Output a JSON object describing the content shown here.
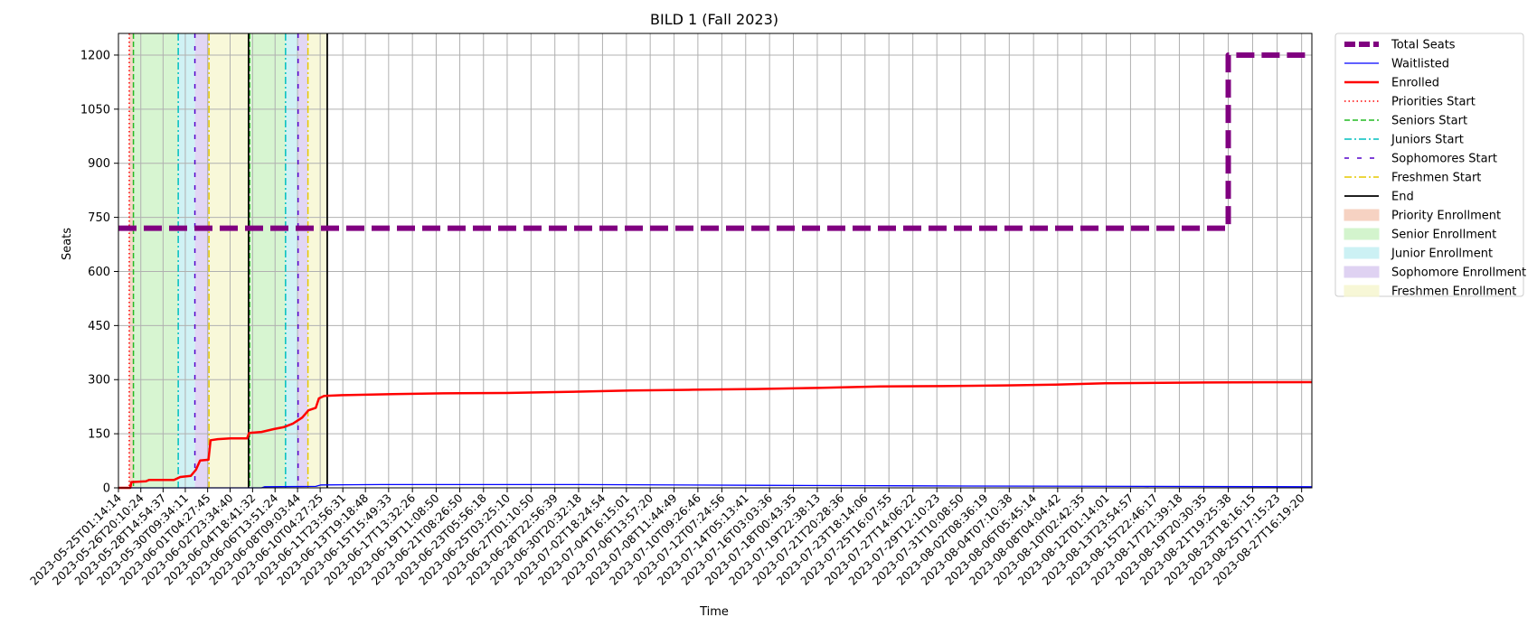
{
  "chart_data": {
    "type": "line",
    "title": "BILD 1 (Fall 2023)",
    "xlabel": "Time",
    "ylabel": "Seats",
    "ylim": [
      0,
      1260
    ],
    "yticks": [
      0,
      150,
      300,
      450,
      600,
      750,
      900,
      1050,
      1200
    ],
    "grid": true,
    "legend_position": "outside-right",
    "x_start": "2023-05-25T01:14:14",
    "x_end": "2023-08-28T12:00:00",
    "xticks": [
      "2023-05-25T01:14:14",
      "2023-05-26T20:10:24",
      "2023-05-28T14:54:37",
      "2023-05-30T09:34:11",
      "2023-06-01T04:27:45",
      "2023-06-02T23:34:40",
      "2023-06-04T18:41:32",
      "2023-06-06T13:51:24",
      "2023-06-08T09:03:44",
      "2023-06-10T04:27:25",
      "2023-06-11T23:56:31",
      "2023-06-13T19:18:48",
      "2023-06-15T15:49:33",
      "2023-06-17T13:32:26",
      "2023-06-19T11:08:50",
      "2023-06-21T08:26:50",
      "2023-06-23T05:56:18",
      "2023-06-25T03:25:10",
      "2023-06-27T01:10:50",
      "2023-06-28T22:56:39",
      "2023-06-30T20:32:18",
      "2023-07-02T18:24:54",
      "2023-07-04T16:15:01",
      "2023-07-06T13:57:20",
      "2023-07-08T11:44:49",
      "2023-07-10T09:26:46",
      "2023-07-12T07:24:56",
      "2023-07-14T05:13:41",
      "2023-07-16T03:03:36",
      "2023-07-18T00:43:35",
      "2023-07-19T22:38:13",
      "2023-07-21T20:28:36",
      "2023-07-23T18:14:06",
      "2023-07-25T16:07:55",
      "2023-07-27T14:06:22",
      "2023-07-29T12:10:23",
      "2023-07-31T10:08:50",
      "2023-08-02T08:36:19",
      "2023-08-04T07:10:38",
      "2023-08-06T05:45:14",
      "2023-08-08T04:04:42",
      "2023-08-10T02:42:35",
      "2023-08-12T01:14:01",
      "2023-08-13T23:54:57",
      "2023-08-15T22:46:17",
      "2023-08-17T21:39:18",
      "2023-08-19T20:30:35",
      "2023-08-21T19:25:38",
      "2023-08-23T18:16:15",
      "2023-08-25T17:15:23",
      "2023-08-27T16:19:20"
    ],
    "series": [
      {
        "name": "Total Seats",
        "color": "#800080",
        "style": "dashed-thick",
        "points": [
          [
            "2023-05-25T01:14:14",
            720
          ],
          [
            "2023-08-21T19:25:38",
            720
          ],
          [
            "2023-08-21T19:25:38",
            1200
          ],
          [
            "2023-08-28T12:00:00",
            1200
          ]
        ]
      },
      {
        "name": "Waitlisted",
        "color": "#0000ff",
        "style": "solid-thin",
        "points": [
          [
            "2023-05-25T01:14:14",
            0
          ],
          [
            "2023-06-05T12:00:00",
            0
          ],
          [
            "2023-06-05T18:00:00",
            3
          ],
          [
            "2023-06-09T20:00:00",
            4
          ],
          [
            "2023-06-10T06:00:00",
            8
          ],
          [
            "2023-06-15T00:00:00",
            9
          ],
          [
            "2023-07-01T00:00:00",
            9
          ],
          [
            "2023-07-15T00:00:00",
            7
          ],
          [
            "2023-08-01T00:00:00",
            5
          ],
          [
            "2023-08-15T00:00:00",
            4
          ],
          [
            "2023-08-28T12:00:00",
            3
          ]
        ]
      },
      {
        "name": "Enrolled",
        "color": "#ff0000",
        "style": "solid-thick",
        "points": [
          [
            "2023-05-25T01:14:14",
            0
          ],
          [
            "2023-05-26T00:00:00",
            0
          ],
          [
            "2023-05-26T02:00:00",
            16
          ],
          [
            "2023-05-27T06:00:00",
            18
          ],
          [
            "2023-05-27T12:00:00",
            22
          ],
          [
            "2023-05-29T12:00:00",
            22
          ],
          [
            "2023-05-30T00:00:00",
            30
          ],
          [
            "2023-05-30T20:00:00",
            33
          ],
          [
            "2023-05-31T06:00:00",
            50
          ],
          [
            "2023-05-31T14:00:00",
            76
          ],
          [
            "2023-06-01T06:00:00",
            78
          ],
          [
            "2023-06-01T10:00:00",
            132
          ],
          [
            "2023-06-02T00:00:00",
            135
          ],
          [
            "2023-06-03T00:00:00",
            137
          ],
          [
            "2023-06-04T08:00:00",
            137
          ],
          [
            "2023-06-04T12:00:00",
            152
          ],
          [
            "2023-06-05T12:00:00",
            155
          ],
          [
            "2023-06-06T12:00:00",
            163
          ],
          [
            "2023-06-07T06:00:00",
            168
          ],
          [
            "2023-06-08T00:00:00",
            178
          ],
          [
            "2023-06-08T18:00:00",
            195
          ],
          [
            "2023-06-09T06:00:00",
            215
          ],
          [
            "2023-06-09T20:00:00",
            222
          ],
          [
            "2023-06-10T02:00:00",
            248
          ],
          [
            "2023-06-10T12:00:00",
            255
          ],
          [
            "2023-06-12T00:00:00",
            257
          ],
          [
            "2023-06-16T00:00:00",
            260
          ],
          [
            "2023-06-20T00:00:00",
            262
          ],
          [
            "2023-06-25T00:00:00",
            263
          ],
          [
            "2023-06-30T00:00:00",
            266
          ],
          [
            "2023-07-05T00:00:00",
            270
          ],
          [
            "2023-07-10T00:00:00",
            272
          ],
          [
            "2023-07-15T00:00:00",
            274
          ],
          [
            "2023-07-20T00:00:00",
            277
          ],
          [
            "2023-07-25T00:00:00",
            281
          ],
          [
            "2023-07-30T00:00:00",
            282
          ],
          [
            "2023-08-04T00:00:00",
            284
          ],
          [
            "2023-08-08T00:00:00",
            286
          ],
          [
            "2023-08-12T00:00:00",
            290
          ],
          [
            "2023-08-20T00:00:00",
            292
          ],
          [
            "2023-08-28T12:00:00",
            293
          ]
        ]
      }
    ],
    "markers": [
      {
        "name": "Priorities Start",
        "color": "#ff0000",
        "style": "dotted",
        "times": [
          "2023-05-25T22:00:00",
          "2023-06-04T11:00:00"
        ]
      },
      {
        "name": "Seniors Start",
        "color": "#22bb22",
        "style": "dashed",
        "times": [
          "2023-05-26T06:00:00",
          "2023-06-04T13:00:00"
        ]
      },
      {
        "name": "Juniors Start",
        "color": "#00bfbf",
        "style": "dashdot",
        "times": [
          "2023-05-29T20:00:00",
          "2023-06-07T10:00:00"
        ]
      },
      {
        "name": "Sophomores Start",
        "color": "#5500cc",
        "style": "loosedash",
        "times": [
          "2023-05-31T04:00:00",
          "2023-06-08T10:00:00"
        ]
      },
      {
        "name": "Freshmen Start",
        "color": "#e6c800",
        "style": "dashdot",
        "times": [
          "2023-06-01T07:00:00",
          "2023-06-09T05:00:00"
        ]
      },
      {
        "name": "End",
        "color": "#000000",
        "style": "solid",
        "times": [
          "2023-06-04T11:00:00",
          "2023-06-10T18:00:00"
        ]
      }
    ],
    "regions": [
      {
        "name": "Priority Enrollment",
        "color": "#f4c7b4",
        "spans": [
          [
            "2023-05-25T22:00:00",
            "2023-05-26T06:00:00"
          ]
        ]
      },
      {
        "name": "Senior Enrollment",
        "color": "#c9f2c1",
        "spans": [
          [
            "2023-05-26T06:00:00",
            "2023-05-29T20:00:00"
          ],
          [
            "2023-06-04T13:00:00",
            "2023-06-07T10:00:00"
          ]
        ]
      },
      {
        "name": "Junior Enrollment",
        "color": "#c0eef2",
        "spans": [
          [
            "2023-05-29T20:00:00",
            "2023-05-31T04:00:00"
          ],
          [
            "2023-06-07T10:00:00",
            "2023-06-08T10:00:00"
          ]
        ]
      },
      {
        "name": "Sophomore Enrollment",
        "color": "#d8c8f0",
        "spans": [
          [
            "2023-05-31T04:00:00",
            "2023-06-01T07:00:00"
          ],
          [
            "2023-06-08T10:00:00",
            "2023-06-09T05:00:00"
          ]
        ]
      },
      {
        "name": "Freshmen Enrollment",
        "color": "#f6f6cc",
        "spans": [
          [
            "2023-06-01T07:00:00",
            "2023-06-04T11:00:00"
          ],
          [
            "2023-06-09T05:00:00",
            "2023-06-10T18:00:00"
          ]
        ]
      }
    ]
  }
}
